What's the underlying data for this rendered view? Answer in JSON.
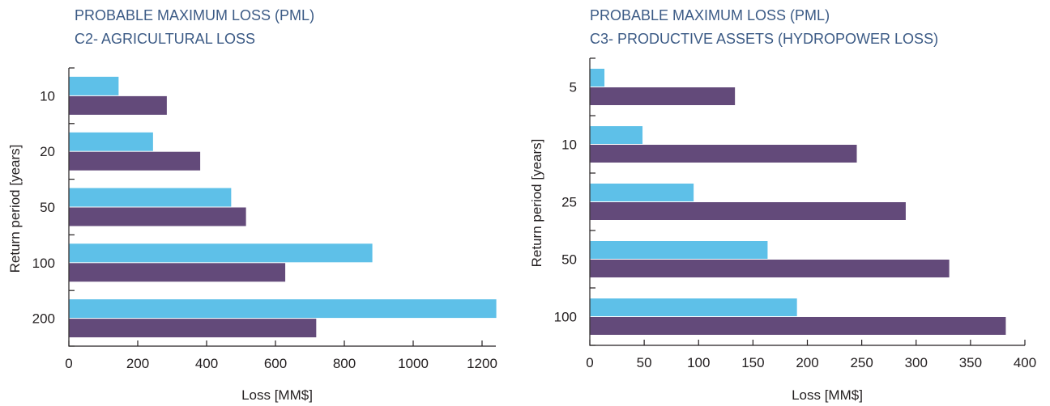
{
  "colors": {
    "series_a": "#5ec0e8",
    "series_b": "#634a7a",
    "title": "#3b5a85",
    "axis": "#231f20"
  },
  "chart_data": [
    {
      "type": "bar",
      "orientation": "horizontal",
      "title": "PROBABLE MAXIMUM LOSS (PML)",
      "subtitle": "C2- AGRICULTURAL LOSS",
      "xlabel": "Loss [MM$]",
      "ylabel": "Return period [years]",
      "xlim": [
        0,
        1240
      ],
      "xticks": [
        0,
        200,
        400,
        600,
        800,
        1000,
        1200
      ],
      "categories": [
        "10",
        "20",
        "50",
        "100",
        "200"
      ],
      "series": [
        {
          "values": [
            143,
            243,
            470,
            880,
            1240
          ]
        },
        {
          "values": [
            283,
            380,
            513,
            627,
            717
          ]
        }
      ],
      "grid": false,
      "legend": "none"
    },
    {
      "type": "bar",
      "orientation": "horizontal",
      "title": "PROBABLE MAXIMUM LOSS (PML)",
      "subtitle": "C3- PRODUCTIVE ASSETS (HYDROPOWER LOSS)",
      "xlabel": "Loss [MM$]",
      "ylabel": "Return period [years]",
      "xlim": [
        0,
        400
      ],
      "xticks": [
        0,
        50,
        100,
        150,
        200,
        250,
        300,
        350,
        400
      ],
      "categories": [
        "5",
        "10",
        "25",
        "50",
        "100"
      ],
      "series": [
        {
          "values": [
            13,
            48,
            95,
            163,
            190
          ]
        },
        {
          "values": [
            133,
            245,
            290,
            330,
            382
          ]
        }
      ],
      "grid": false,
      "legend": "none"
    }
  ]
}
